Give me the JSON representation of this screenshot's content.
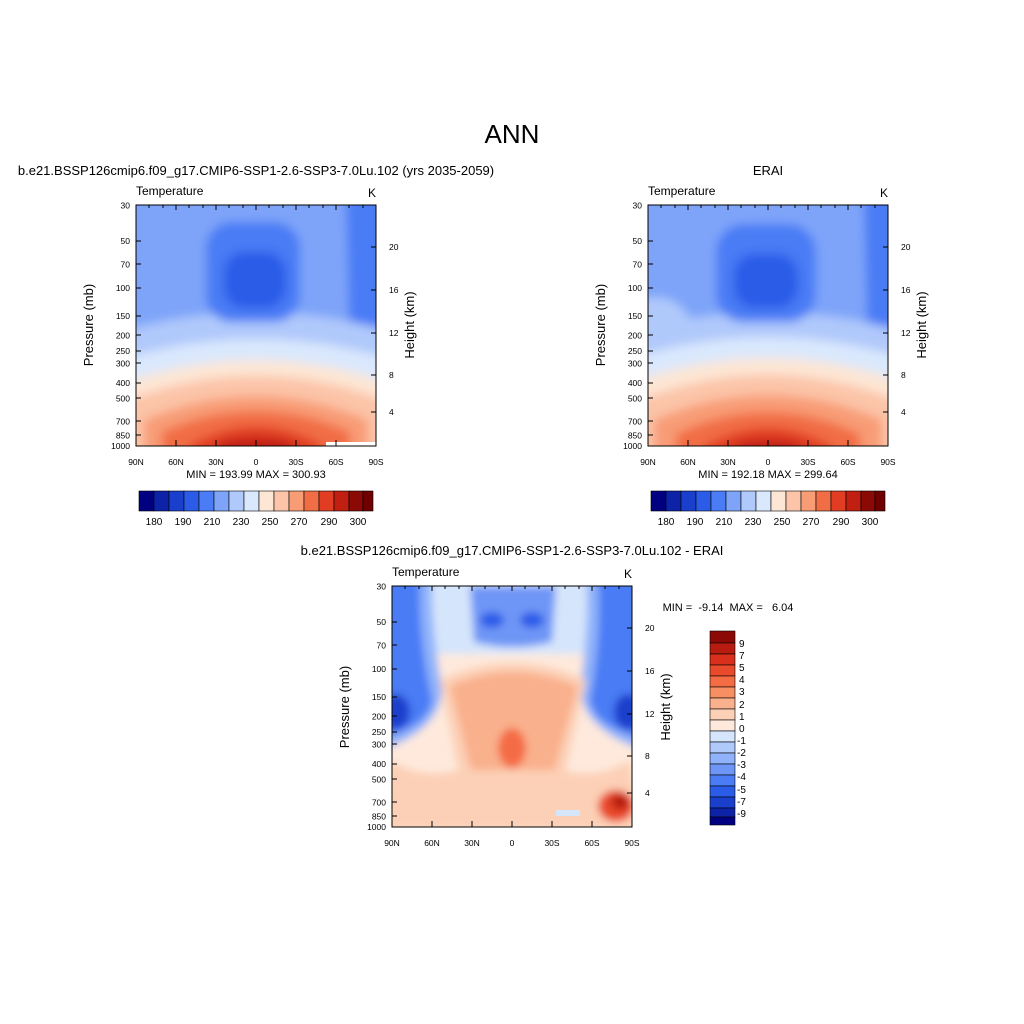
{
  "page_title": "ANN",
  "chart_data": [
    {
      "type": "heatmap",
      "title": "b.e21.BSSP126cmip6.f09_g17.CMIP6-SSP1-2.6-SSP3-7.0Lu.102 (yrs 2035-2059)",
      "variable_label": "Temperature",
      "units": "K",
      "xlabel": "",
      "ylabel": "Pressure (mb)",
      "y2label": "Height (km)",
      "x_ticks": [
        "90N",
        "60N",
        "30N",
        "0",
        "30S",
        "60S",
        "90S"
      ],
      "x_range": [
        90,
        -90
      ],
      "y_ticks": [
        30,
        50,
        70,
        100,
        150,
        200,
        250,
        300,
        400,
        500,
        700,
        850,
        1000
      ],
      "y_scale": "log",
      "y_range": [
        30,
        1000
      ],
      "y2_ticks": [
        4,
        8,
        12,
        16,
        20
      ],
      "stats_text": "MIN = 193.99  MAX = 300.93",
      "min": 193.99,
      "max": 300.93,
      "colorbar": {
        "orientation": "horizontal",
        "levels": [
          180,
          185,
          190,
          200,
          210,
          220,
          230,
          240,
          250,
          260,
          270,
          280,
          290,
          295,
          300
        ],
        "labels": [
          "180",
          "190",
          "210",
          "230",
          "250",
          "270",
          "290",
          "300"
        ],
        "colors": [
          "#000080",
          "#0c23a8",
          "#1a3fcc",
          "#2a5ce8",
          "#4a7cf5",
          "#7ea4f9",
          "#b0c9fb",
          "#dae8fd",
          "#fde6d4",
          "#fcc4a8",
          "#f89c76",
          "#f16d45",
          "#e03d22",
          "#c01f12",
          "#8c0a05",
          "#700000"
        ]
      }
    },
    {
      "type": "heatmap",
      "title": "ERAI",
      "variable_label": "Temperature",
      "units": "K",
      "xlabel": "",
      "ylabel": "Pressure (mb)",
      "y2label": "Height (km)",
      "x_ticks": [
        "90N",
        "60N",
        "30N",
        "0",
        "30S",
        "60S",
        "90S"
      ],
      "x_range": [
        90,
        -90
      ],
      "y_ticks": [
        30,
        50,
        70,
        100,
        150,
        200,
        250,
        300,
        400,
        500,
        700,
        850,
        1000
      ],
      "y_scale": "log",
      "y_range": [
        30,
        1000
      ],
      "y2_ticks": [
        4,
        8,
        12,
        16,
        20
      ],
      "stats_text": "MIN = 192.18  MAX = 299.64",
      "min": 192.18,
      "max": 299.64,
      "colorbar": {
        "orientation": "horizontal",
        "levels": [
          180,
          185,
          190,
          200,
          210,
          220,
          230,
          240,
          250,
          260,
          270,
          280,
          290,
          295,
          300
        ],
        "labels": [
          "180",
          "190",
          "210",
          "230",
          "250",
          "270",
          "290",
          "300"
        ],
        "colors": [
          "#000080",
          "#0c23a8",
          "#1a3fcc",
          "#2a5ce8",
          "#4a7cf5",
          "#7ea4f9",
          "#b0c9fb",
          "#dae8fd",
          "#fde6d4",
          "#fcc4a8",
          "#f89c76",
          "#f16d45",
          "#e03d22",
          "#c01f12",
          "#8c0a05",
          "#700000"
        ]
      }
    },
    {
      "type": "heatmap",
      "title": "b.e21.BSSP126cmip6.f09_g17.CMIP6-SSP1-2.6-SSP3-7.0Lu.102 - ERAI",
      "variable_label": "Temperature",
      "units": "K",
      "xlabel": "",
      "ylabel": "Pressure (mb)",
      "y2label": "Height (km)",
      "x_ticks": [
        "90N",
        "60N",
        "30N",
        "0",
        "30S",
        "60S",
        "90S"
      ],
      "x_range": [
        90,
        -90
      ],
      "y_ticks": [
        30,
        50,
        70,
        100,
        150,
        200,
        250,
        300,
        400,
        500,
        700,
        850,
        1000
      ],
      "y_scale": "log",
      "y_range": [
        30,
        1000
      ],
      "y2_ticks": [
        4,
        8,
        12,
        16,
        20
      ],
      "stats_text": "MIN =  -9.14  MAX =   6.04",
      "min": -9.14,
      "max": 6.04,
      "colorbar": {
        "orientation": "vertical",
        "levels": [
          9,
          8,
          7,
          6,
          5,
          4,
          3,
          2,
          1,
          0,
          -1,
          -2,
          -3,
          -4,
          -5,
          -6,
          -7,
          -8,
          -9
        ],
        "labels": [
          "9",
          "7",
          "5",
          "4",
          "3",
          "2",
          "1",
          "0",
          "-1",
          "-2",
          "-3",
          "-4",
          "-5",
          "-7",
          "-9"
        ],
        "colors": [
          "#8c0a05",
          "#b81c10",
          "#d8301c",
          "#ea4a2c",
          "#f46c44",
          "#f68f62",
          "#f9b08c",
          "#fcd0b6",
          "#fee9dc",
          "#d5e5fb",
          "#b0c9fb",
          "#8fb2fa",
          "#6e96f6",
          "#4a7cf5",
          "#2a5ce8",
          "#1a3fcc",
          "#0c23a8",
          "#000080"
        ]
      }
    }
  ]
}
